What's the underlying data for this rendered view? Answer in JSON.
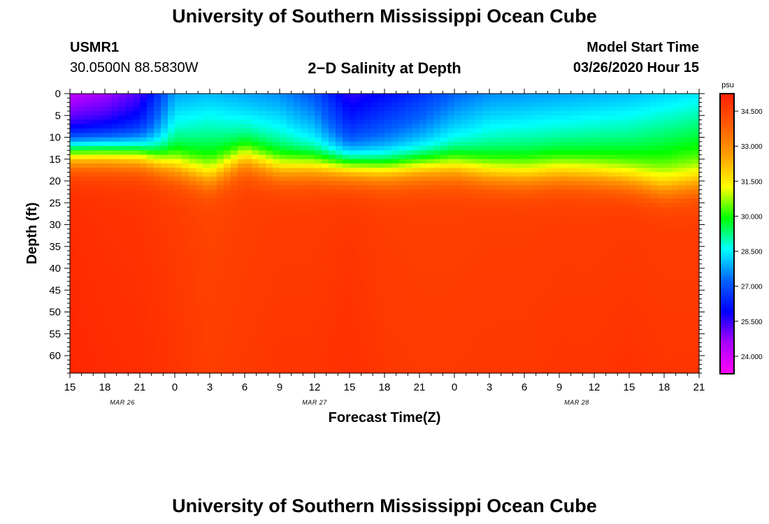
{
  "header": {
    "title_top": "University of Southern Mississippi Ocean Cube",
    "station_id": "USMR1",
    "station_coords": "30.0500N 88.5830W",
    "plot_title": "2−D Salinity at Depth",
    "model_label": "Model Start Time",
    "model_start": "03/26/2020 Hour 15",
    "title_bottom": "University of Southern Mississippi Ocean Cube"
  },
  "chart_data": {
    "type": "heatmap",
    "title": "2−D Salinity at Depth",
    "xlabel": "Forecast Time(Z)",
    "ylabel": "Depth (ft)",
    "x_ticks": [
      "15",
      "18",
      "21",
      "0",
      "3",
      "6",
      "9",
      "12",
      "15",
      "18",
      "21",
      "0",
      "3",
      "6",
      "9",
      "12",
      "15",
      "18",
      "21"
    ],
    "x_hours": [
      0,
      3,
      6,
      9,
      12,
      15,
      18,
      21,
      24,
      27,
      30,
      33,
      36,
      39,
      42,
      45,
      48,
      51,
      54
    ],
    "x_range_hours": [
      0,
      54
    ],
    "date_labels": [
      {
        "label": "MAR 26",
        "hour": 4.5
      },
      {
        "label": "MAR 27",
        "hour": 21
      },
      {
        "label": "MAR 28",
        "hour": 43.5
      }
    ],
    "y_ticks": [
      0,
      5,
      10,
      15,
      20,
      25,
      30,
      35,
      40,
      45,
      50,
      55,
      60
    ],
    "ylim": [
      0,
      64
    ],
    "y_inverted": true,
    "colorbar": {
      "unit": "psu",
      "range": [
        23.25,
        35.25
      ],
      "tick_labels": [
        "34.500",
        "33.000",
        "31.500",
        "30.000",
        "28.500",
        "27.000",
        "25.500",
        "24.000"
      ],
      "tick_values": [
        34.5,
        33.0,
        31.5,
        30.0,
        28.5,
        27.0,
        25.5,
        24.0
      ],
      "colors": [
        "#ff00ff",
        "#aa00ff",
        "#0000ff",
        "#0064ff",
        "#00ffff",
        "#00ff00",
        "#ffff00",
        "#ffa000",
        "#ff5a00",
        "#ff2000"
      ]
    },
    "salinity_profile": {
      "hours": [
        0,
        3,
        6,
        9,
        12,
        15,
        18,
        21,
        24,
        27,
        30,
        33,
        36,
        39,
        42,
        45,
        48,
        51,
        54
      ],
      "surface_psu": [
        24.3,
        24.6,
        25.3,
        27.8,
        28.0,
        27.8,
        27.6,
        27.0,
        25.5,
        26.0,
        26.5,
        27.2,
        27.6,
        27.7,
        27.8,
        27.9,
        28.0,
        28.2,
        28.4
      ],
      "halocline_ft": [
        13.5,
        13.5,
        14.0,
        17.0,
        19.5,
        15.0,
        17.5,
        17.0,
        17.0,
        17.5,
        17.0,
        17.0,
        18.5,
        19.0,
        18.5,
        19.0,
        20.0,
        22.0,
        21.0
      ],
      "deep_psu": [
        34.9,
        34.8,
        34.75,
        34.6,
        34.4,
        34.5,
        34.6,
        34.6,
        34.7,
        34.55,
        34.5,
        34.5,
        34.55,
        34.55,
        34.6,
        34.6,
        34.65,
        34.6,
        34.6
      ]
    }
  }
}
